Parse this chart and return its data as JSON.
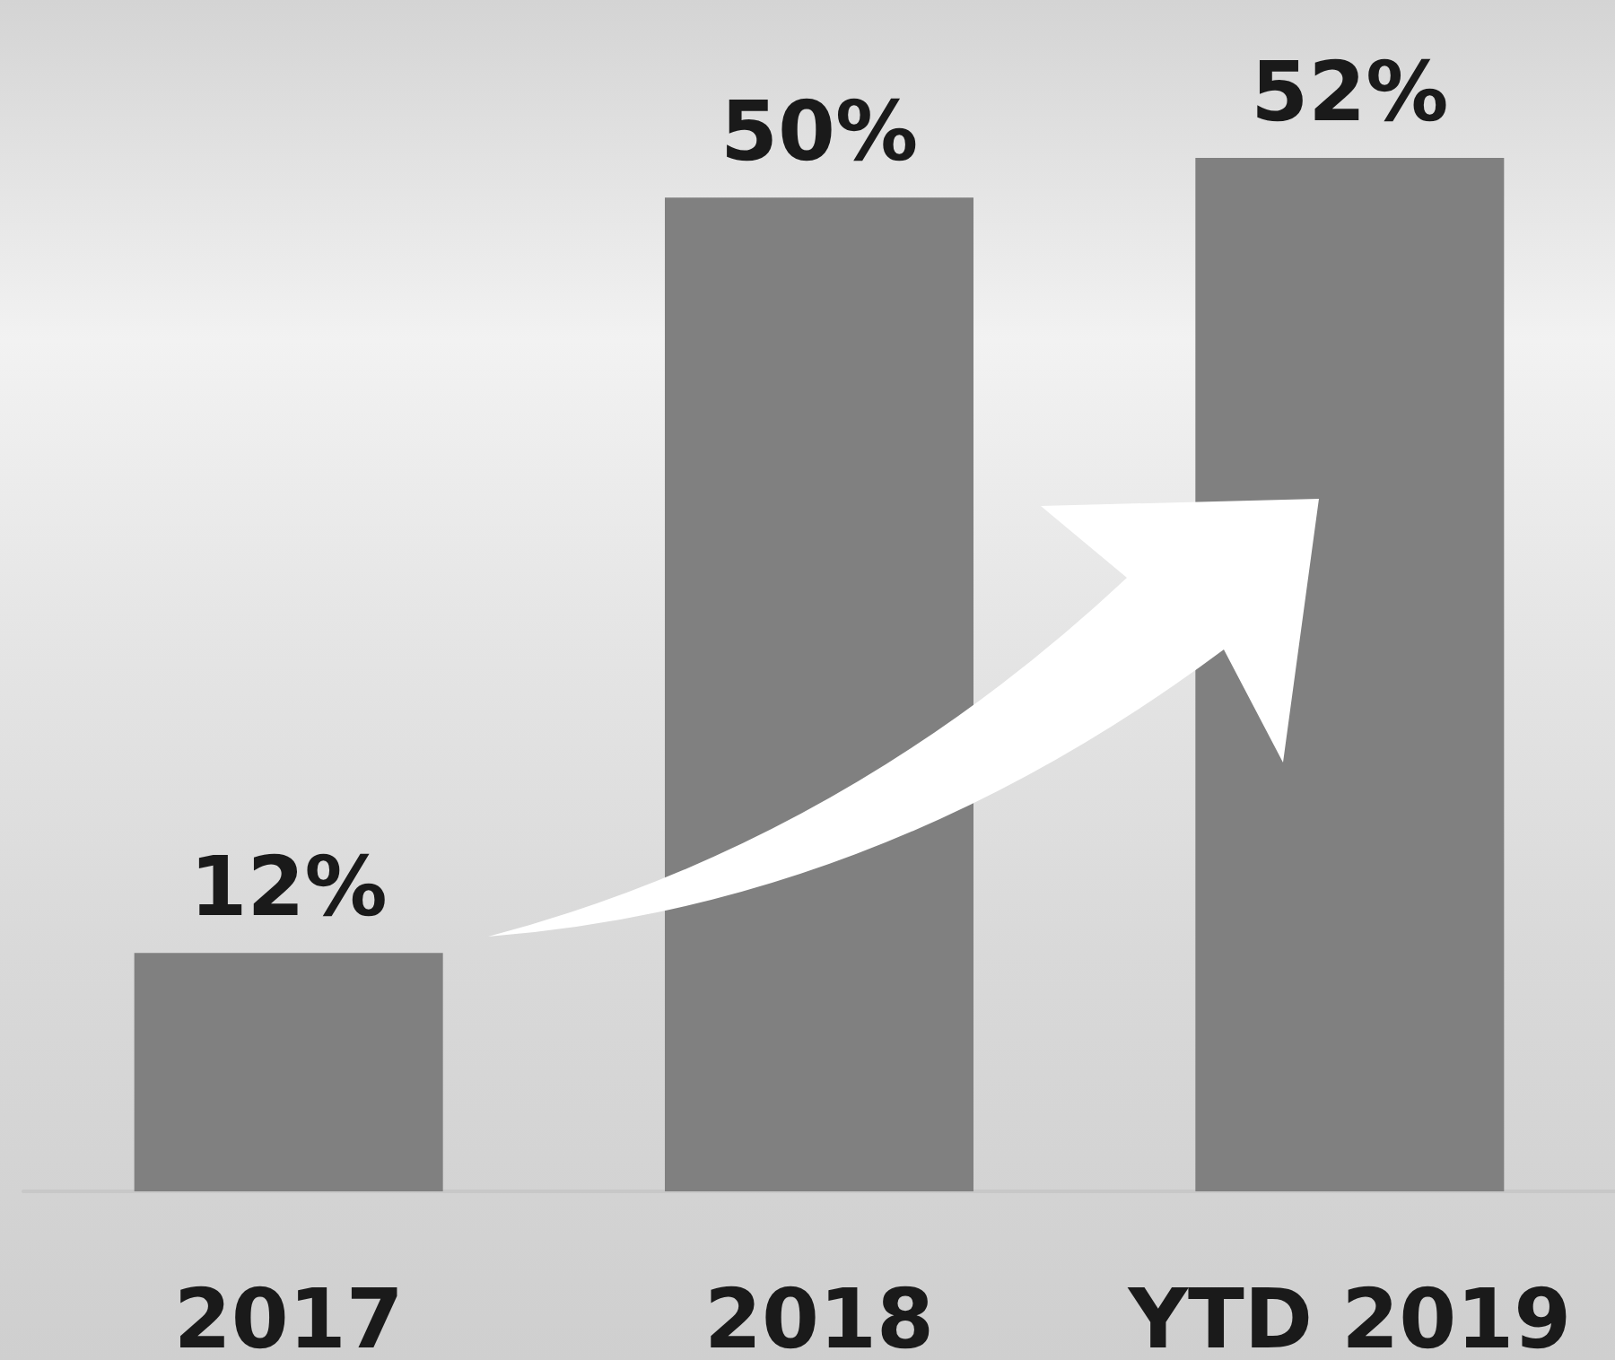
{
  "chart_data": {
    "type": "bar",
    "categories": [
      "2017",
      "2018",
      "YTD 2019"
    ],
    "values": [
      12,
      50,
      52
    ],
    "value_labels": [
      "12%",
      "50%",
      "52%"
    ],
    "color": "#808080"
  }
}
